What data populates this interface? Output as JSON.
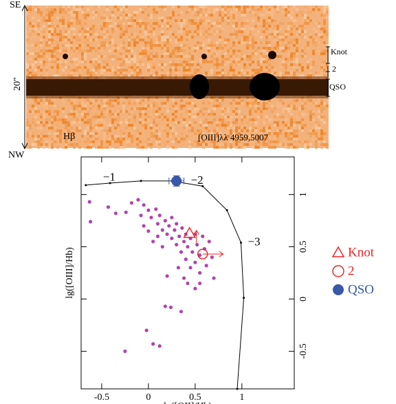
{
  "image": {
    "top_label": "SE",
    "bottom_label": "NW",
    "scale_label": "20\"",
    "left_line_label": "Hβ",
    "right_line_label": "[OIII]λλ 4959,5007",
    "row_labels": [
      "Knot",
      "2",
      "QSO"
    ]
  },
  "chart_data": {
    "type": "scatter",
    "xlabel": "lg([OII]/Hb)",
    "ylabel": "lg([OIII]/Hb)",
    "xlim": [
      -0.72,
      1.56
    ],
    "ylim": [
      -0.86,
      1.36
    ],
    "xticks": [
      -0.5,
      0,
      0.5,
      1
    ],
    "yticks": [
      -0.5,
      0,
      0.5,
      1
    ],
    "model": {
      "color": "#000000",
      "x": [
        -0.67,
        -0.41,
        -0.08,
        0.25,
        0.58,
        0.84,
        0.99,
        1.02,
        0.95
      ],
      "y": [
        1.09,
        1.11,
        1.13,
        1.13,
        1.08,
        0.85,
        0.54,
        0.01,
        -0.86
      ]
    },
    "annotations": [
      {
        "text": "−1",
        "x": -0.42,
        "y": 1.16
      },
      {
        "text": "−2",
        "x": 0.52,
        "y": 1.13
      },
      {
        "text": "−3",
        "x": 1.13,
        "y": 0.54
      }
    ],
    "points": {
      "color": "#b044b0",
      "x": [
        -0.63,
        -0.62,
        -0.43,
        -0.35,
        -0.24,
        -0.18,
        -0.11,
        -0.05,
        -0.08,
        0.0,
        0.03,
        0.08,
        0.1,
        0.12,
        0.15,
        0.18,
        0.2,
        0.22,
        0.25,
        0.25,
        0.28,
        0.3,
        0.3,
        0.33,
        0.35,
        0.36,
        0.38,
        0.4,
        0.4,
        0.42,
        0.45,
        0.45,
        0.47,
        0.5,
        0.5,
        0.52,
        0.55,
        0.55,
        0.58,
        0.6,
        0.62,
        0.65,
        0.68,
        0.7,
        0.38,
        0.42,
        0.32,
        0.5,
        0.55,
        0.2,
        0.05,
        0.1,
        -0.05,
        0.0,
        0.15,
        0.18,
        0.24,
        0.35,
        -0.02,
        0.05,
        0.12,
        -0.25
      ],
      "y": [
        0.93,
        0.74,
        0.88,
        0.82,
        0.83,
        0.92,
        0.95,
        0.9,
        0.8,
        0.85,
        0.78,
        0.86,
        0.72,
        0.8,
        0.66,
        0.75,
        0.62,
        0.7,
        0.58,
        0.78,
        0.66,
        0.52,
        0.72,
        0.6,
        0.45,
        0.68,
        0.55,
        0.38,
        0.62,
        0.5,
        0.3,
        0.58,
        0.45,
        0.62,
        0.35,
        0.52,
        0.42,
        0.25,
        0.6,
        0.48,
        0.32,
        0.55,
        0.4,
        0.2,
        0.2,
        0.15,
        0.3,
        0.1,
        0.15,
        0.22,
        0.55,
        0.6,
        0.7,
        0.65,
        0.5,
        -0.07,
        -0.08,
        -0.12,
        -0.3,
        -0.43,
        -0.45,
        -0.5
      ]
    },
    "series": [
      {
        "name": "Knot",
        "marker": "triangle",
        "color": "#e8262a",
        "x": 0.44,
        "y": 0.63,
        "limit": "y"
      },
      {
        "name": "2",
        "marker": "circle",
        "color": "#e8262a",
        "x": 0.58,
        "y": 0.43,
        "limit": "x"
      },
      {
        "name": "QSO",
        "marker": "filled-circle",
        "color": "#3a58a8",
        "x": 0.3,
        "y": 1.13,
        "xerr": 0.08,
        "yerr": 0.05
      }
    ]
  }
}
